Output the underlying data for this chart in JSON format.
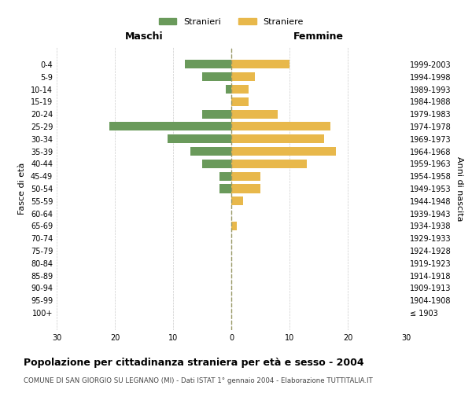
{
  "age_groups": [
    "100+",
    "95-99",
    "90-94",
    "85-89",
    "80-84",
    "75-79",
    "70-74",
    "65-69",
    "60-64",
    "55-59",
    "50-54",
    "45-49",
    "40-44",
    "35-39",
    "30-34",
    "25-29",
    "20-24",
    "15-19",
    "10-14",
    "5-9",
    "0-4"
  ],
  "birth_years": [
    "≤ 1903",
    "1904-1908",
    "1909-1913",
    "1914-1918",
    "1919-1923",
    "1924-1928",
    "1929-1933",
    "1934-1938",
    "1939-1943",
    "1944-1948",
    "1949-1953",
    "1954-1958",
    "1959-1963",
    "1964-1968",
    "1969-1973",
    "1974-1978",
    "1979-1983",
    "1984-1988",
    "1989-1993",
    "1994-1998",
    "1999-2003"
  ],
  "maschi": [
    0,
    0,
    0,
    0,
    0,
    0,
    0,
    0,
    0,
    0,
    2,
    2,
    5,
    7,
    11,
    21,
    5,
    0,
    1,
    5,
    8
  ],
  "femmine": [
    0,
    0,
    0,
    0,
    0,
    0,
    0,
    1,
    0,
    2,
    5,
    5,
    13,
    18,
    16,
    17,
    8,
    3,
    3,
    4,
    10
  ],
  "color_maschi": "#6a9a5b",
  "color_femmine": "#e8b84b",
  "xlim": 30,
  "title": "Popolazione per cittadinanza straniera per età e sesso - 2004",
  "subtitle": "COMUNE DI SAN GIORGIO SU LEGNANO (MI) - Dati ISTAT 1° gennaio 2004 - Elaborazione TUTTITALIA.IT",
  "ylabel_left": "Fasce di età",
  "ylabel_right": "Anni di nascita",
  "legend_maschi": "Stranieri",
  "legend_femmine": "Straniere",
  "header_left": "Maschi",
  "header_right": "Femmine",
  "bg_color": "#ffffff",
  "grid_color": "#cccccc",
  "center_line_color": "#999966"
}
